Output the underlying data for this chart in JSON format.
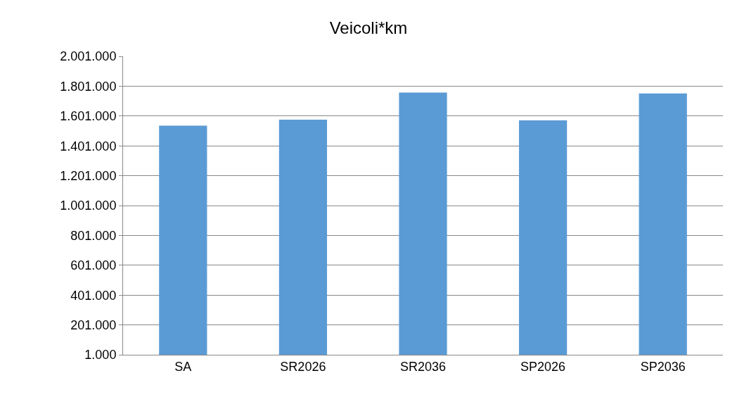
{
  "chart_data": {
    "type": "bar",
    "title": "Veicoli*km",
    "categories": [
      "SA",
      "SR2026",
      "SR2036",
      "SP2026",
      "SP2036"
    ],
    "values": [
      1536000,
      1577000,
      1758000,
      1572000,
      1752000
    ],
    "color": "#5b9bd5",
    "ylim": [
      1000,
      2001000
    ],
    "yticks": [
      {
        "value": 1000,
        "label": "1.000"
      },
      {
        "value": 201000,
        "label": "201.000"
      },
      {
        "value": 401000,
        "label": "401.000"
      },
      {
        "value": 601000,
        "label": "601.000"
      },
      {
        "value": 801000,
        "label": "801.000"
      },
      {
        "value": 1001000,
        "label": "1.001.000"
      },
      {
        "value": 1201000,
        "label": "1.201.000"
      },
      {
        "value": 1401000,
        "label": "1.401.000"
      },
      {
        "value": 1601000,
        "label": "1.601.000"
      },
      {
        "value": 1801000,
        "label": "1.801.000"
      },
      {
        "value": 2001000,
        "label": "2.001.000"
      }
    ],
    "grid": "y"
  }
}
